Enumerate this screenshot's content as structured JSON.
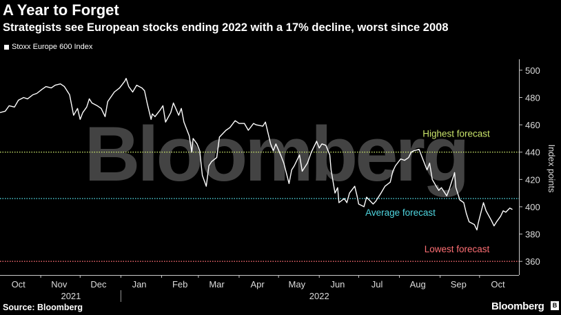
{
  "title": "A Year to Forget",
  "subtitle": "Strategists see European stocks ending 2022 with a 17% decline, worst since 2008",
  "legend_label": "Stoxx Europe 600 Index",
  "source": "Source: Bloomberg",
  "brand": "Bloomberg",
  "watermark": "Bloomberg",
  "chart_data": {
    "type": "line",
    "ylabel": "Index points",
    "ylim": [
      350,
      508
    ],
    "yticks": [
      360,
      380,
      400,
      420,
      440,
      460,
      480,
      500
    ],
    "xlim": [
      "2021-10-01",
      "2022-10-31"
    ],
    "month_ticks": [
      {
        "label": "Oct",
        "date": "2021-10-15"
      },
      {
        "label": "Nov",
        "date": "2021-11-15"
      },
      {
        "label": "Dec",
        "date": "2021-12-15"
      },
      {
        "label": "Jan",
        "date": "2022-01-15"
      },
      {
        "label": "Feb",
        "date": "2022-02-15"
      },
      {
        "label": "Mar",
        "date": "2022-03-15"
      },
      {
        "label": "Apr",
        "date": "2022-04-15"
      },
      {
        "label": "May",
        "date": "2022-05-15"
      },
      {
        "label": "Jun",
        "date": "2022-06-15"
      },
      {
        "label": "Jul",
        "date": "2022-07-15"
      },
      {
        "label": "Aug",
        "date": "2022-08-15"
      },
      {
        "label": "Sep",
        "date": "2022-09-15"
      },
      {
        "label": "Oct",
        "date": "2022-10-15"
      }
    ],
    "years": [
      {
        "label": "2021",
        "date": "2021-11-24"
      },
      {
        "label": "2022",
        "date": "2022-06-01"
      }
    ],
    "year_divider": "2022-01-01",
    "reference_lines": [
      {
        "label": "Highest forecast",
        "value": 440,
        "color": "#c8e36a"
      },
      {
        "label": "Average forecast",
        "value": 406,
        "color": "#4fd6e0"
      },
      {
        "label": "Lowest forecast",
        "value": 360,
        "color": "#ff6f74"
      }
    ],
    "series": [
      {
        "name": "Stoxx Europe 600 Index",
        "color": "#ffffff",
        "points": [
          [
            "2021-10-01",
            469
          ],
          [
            "2021-10-05",
            470
          ],
          [
            "2021-10-08",
            474
          ],
          [
            "2021-10-12",
            473
          ],
          [
            "2021-10-15",
            478
          ],
          [
            "2021-10-19",
            480
          ],
          [
            "2021-10-22",
            479
          ],
          [
            "2021-10-26",
            482
          ],
          [
            "2021-10-29",
            483
          ],
          [
            "2021-11-02",
            486
          ],
          [
            "2021-11-05",
            488
          ],
          [
            "2021-11-09",
            487
          ],
          [
            "2021-11-12",
            489
          ],
          [
            "2021-11-16",
            490
          ],
          [
            "2021-11-19",
            488
          ],
          [
            "2021-11-23",
            482
          ],
          [
            "2021-11-26",
            467
          ],
          [
            "2021-11-29",
            472
          ],
          [
            "2021-12-01",
            464
          ],
          [
            "2021-12-03",
            469
          ],
          [
            "2021-12-06",
            473
          ],
          [
            "2021-12-08",
            479
          ],
          [
            "2021-12-10",
            476
          ],
          [
            "2021-12-14",
            474
          ],
          [
            "2021-12-17",
            472
          ],
          [
            "2021-12-20",
            466
          ],
          [
            "2021-12-22",
            477
          ],
          [
            "2021-12-27",
            484
          ],
          [
            "2021-12-31",
            487
          ],
          [
            "2022-01-04",
            492
          ],
          [
            "2022-01-05",
            494
          ],
          [
            "2022-01-07",
            488
          ],
          [
            "2022-01-10",
            484
          ],
          [
            "2022-01-13",
            489
          ],
          [
            "2022-01-17",
            487
          ],
          [
            "2022-01-19",
            485
          ],
          [
            "2022-01-21",
            476
          ],
          [
            "2022-01-24",
            464
          ],
          [
            "2022-01-25",
            468
          ],
          [
            "2022-01-27",
            466
          ],
          [
            "2022-01-31",
            471
          ],
          [
            "2022-02-02",
            474
          ],
          [
            "2022-02-04",
            462
          ],
          [
            "2022-02-08",
            469
          ],
          [
            "2022-02-10",
            476
          ],
          [
            "2022-02-14",
            467
          ],
          [
            "2022-02-16",
            472
          ],
          [
            "2022-02-18",
            462
          ],
          [
            "2022-02-22",
            452
          ],
          [
            "2022-02-24",
            440
          ],
          [
            "2022-02-25",
            450
          ],
          [
            "2022-02-28",
            446
          ],
          [
            "2022-03-02",
            441
          ],
          [
            "2022-03-04",
            423
          ],
          [
            "2022-03-07",
            415
          ],
          [
            "2022-03-09",
            430
          ],
          [
            "2022-03-11",
            433
          ],
          [
            "2022-03-15",
            436
          ],
          [
            "2022-03-17",
            451
          ],
          [
            "2022-03-22",
            456
          ],
          [
            "2022-03-25",
            458
          ],
          [
            "2022-03-29",
            463
          ],
          [
            "2022-04-01",
            461
          ],
          [
            "2022-04-05",
            461
          ],
          [
            "2022-04-08",
            456
          ],
          [
            "2022-04-12",
            461
          ],
          [
            "2022-04-14",
            460
          ],
          [
            "2022-04-19",
            459
          ],
          [
            "2022-04-21",
            462
          ],
          [
            "2022-04-25",
            446
          ],
          [
            "2022-04-27",
            441
          ],
          [
            "2022-04-29",
            446
          ],
          [
            "2022-05-03",
            437
          ],
          [
            "2022-05-05",
            432
          ],
          [
            "2022-05-09",
            417
          ],
          [
            "2022-05-11",
            427
          ],
          [
            "2022-05-13",
            430
          ],
          [
            "2022-05-17",
            438
          ],
          [
            "2022-05-19",
            426
          ],
          [
            "2022-05-23",
            432
          ],
          [
            "2022-05-26",
            440
          ],
          [
            "2022-05-30",
            448
          ],
          [
            "2022-06-01",
            443
          ],
          [
            "2022-06-03",
            446
          ],
          [
            "2022-06-06",
            445
          ],
          [
            "2022-06-09",
            438
          ],
          [
            "2022-06-10",
            427
          ],
          [
            "2022-06-13",
            410
          ],
          [
            "2022-06-15",
            414
          ],
          [
            "2022-06-16",
            403
          ],
          [
            "2022-06-20",
            406
          ],
          [
            "2022-06-22",
            403
          ],
          [
            "2022-06-24",
            410
          ],
          [
            "2022-06-28",
            415
          ],
          [
            "2022-06-30",
            407
          ],
          [
            "2022-07-01",
            402
          ],
          [
            "2022-07-05",
            400
          ],
          [
            "2022-07-07",
            407
          ],
          [
            "2022-07-12",
            402
          ],
          [
            "2022-07-14",
            404
          ],
          [
            "2022-07-18",
            410
          ],
          [
            "2022-07-21",
            415
          ],
          [
            "2022-07-25",
            418
          ],
          [
            "2022-07-27",
            426
          ],
          [
            "2022-07-29",
            430
          ],
          [
            "2022-08-02",
            435
          ],
          [
            "2022-08-05",
            434
          ],
          [
            "2022-08-08",
            436
          ],
          [
            "2022-08-10",
            440
          ],
          [
            "2022-08-12",
            441
          ],
          [
            "2022-08-16",
            442
          ],
          [
            "2022-08-18",
            437
          ],
          [
            "2022-08-22",
            427
          ],
          [
            "2022-08-24",
            432
          ],
          [
            "2022-08-26",
            420
          ],
          [
            "2022-08-29",
            415
          ],
          [
            "2022-08-31",
            412
          ],
          [
            "2022-09-02",
            414
          ],
          [
            "2022-09-06",
            408
          ],
          [
            "2022-09-08",
            413
          ],
          [
            "2022-09-12",
            425
          ],
          [
            "2022-09-13",
            414
          ],
          [
            "2022-09-16",
            405
          ],
          [
            "2022-09-19",
            403
          ],
          [
            "2022-09-21",
            395
          ],
          [
            "2022-09-23",
            389
          ],
          [
            "2022-09-27",
            387
          ],
          [
            "2022-09-29",
            383
          ],
          [
            "2022-09-30",
            388
          ],
          [
            "2022-10-04",
            403
          ],
          [
            "2022-10-06",
            397
          ],
          [
            "2022-10-10",
            390
          ],
          [
            "2022-10-12",
            386
          ],
          [
            "2022-10-14",
            389
          ],
          [
            "2022-10-17",
            393
          ],
          [
            "2022-10-19",
            397
          ],
          [
            "2022-10-21",
            396
          ],
          [
            "2022-10-24",
            399
          ],
          [
            "2022-10-26",
            398
          ]
        ]
      }
    ]
  }
}
